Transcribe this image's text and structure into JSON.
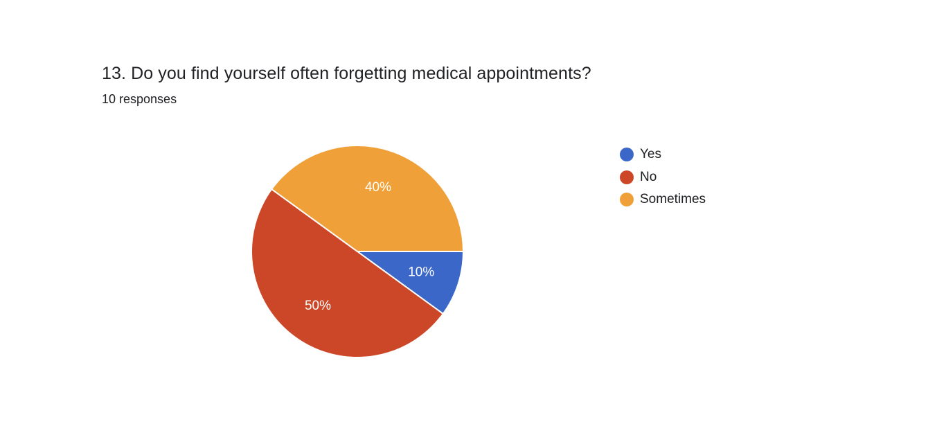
{
  "question": {
    "title": "13. Do you find yourself often forgetting medical appointments?",
    "responses": "10 responses"
  },
  "chart_data": {
    "type": "pie",
    "title": "13. Do you find yourself often forgetting medical appointments?",
    "subtitle": "10 responses",
    "categories": [
      "Yes",
      "No",
      "Sometimes"
    ],
    "values": [
      10,
      50,
      40
    ],
    "labels": [
      "10%",
      "50%",
      "40%"
    ],
    "colors": [
      "#3a67c8",
      "#cc4727",
      "#f0a038"
    ],
    "legend_position": "right"
  }
}
